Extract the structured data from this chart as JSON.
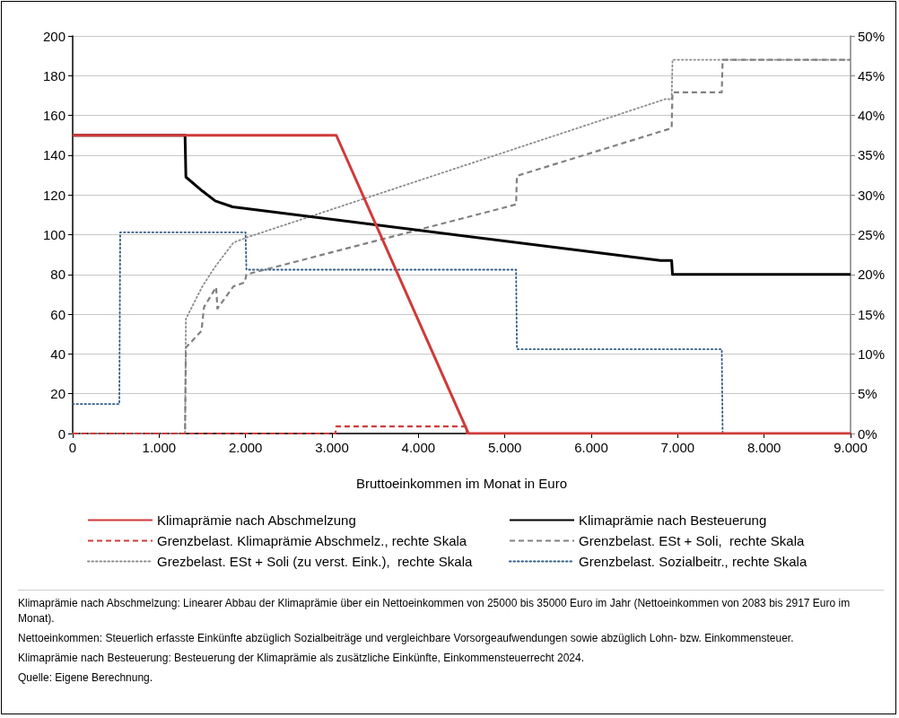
{
  "chart_data": {
    "type": "line",
    "xlabel": "Bruttoeinkommen im Monat in Euro",
    "xlim": [
      0,
      9000
    ],
    "xticks": [
      0,
      {
        "value": 1000,
        "label": "1.000"
      },
      {
        "value": 2000,
        "label": "2.000"
      },
      {
        "value": 3000,
        "label": "3.000"
      },
      {
        "value": 4000,
        "label": "4.000"
      },
      {
        "value": 5000,
        "label": "5.000"
      },
      {
        "value": 6000,
        "label": "6.000"
      },
      {
        "value": 7000,
        "label": "7.000"
      },
      {
        "value": 8000,
        "label": "8.000"
      },
      {
        "value": 9000,
        "label": "9.000"
      }
    ],
    "ylim": [
      0,
      200
    ],
    "yticks": [
      0,
      20,
      40,
      60,
      80,
      100,
      120,
      140,
      160,
      180,
      200
    ],
    "y2lim": [
      0,
      50
    ],
    "y2ticks": [
      {
        "value": 0,
        "label": "0%"
      },
      {
        "value": 5,
        "label": "5%"
      },
      {
        "value": 10,
        "label": "10%"
      },
      {
        "value": 15,
        "label": "15%"
      },
      {
        "value": 20,
        "label": "20%"
      },
      {
        "value": 25,
        "label": "25%"
      },
      {
        "value": 30,
        "label": "30%"
      },
      {
        "value": 35,
        "label": "35%"
      },
      {
        "value": 40,
        "label": "40%"
      },
      {
        "value": 45,
        "label": "45%"
      },
      {
        "value": 50,
        "label": "50%"
      }
    ],
    "grid": "y",
    "legend": "bottom",
    "marker": "none",
    "series": [
      {
        "name": "Klimaprämie nach Abschmelzung",
        "color": "#d03a3a",
        "line_style": "solid",
        "x": [
          0,
          3050,
          4580,
          9000
        ],
        "values": [
          150,
          150,
          0,
          0
        ]
      },
      {
        "name": "Klimaprämie nach Besteuerung",
        "color": "#000000",
        "line_style": "solid",
        "x": [
          0,
          1300,
          1310,
          1500,
          1650,
          1850,
          6800,
          6930,
          6940,
          9000
        ],
        "values": [
          150,
          150,
          129,
          122,
          117,
          114,
          87,
          87,
          80,
          80
        ]
      },
      {
        "name": "Grenzbelast. Klimaprämie Abschmelz., rechte Skala",
        "color": "#d03a3a",
        "line_style": "dashed",
        "axis": "y2",
        "x": [
          0,
          3040,
          3050,
          4550,
          4560,
          9000
        ],
        "values": [
          0,
          0,
          0.9,
          0.9,
          0,
          0
        ]
      },
      {
        "name": "Grenzbelast. ESt + Soli,  rechte Skala",
        "color": "#808080",
        "line_style": "dashed",
        "axis": "y2",
        "x": [
          0,
          1300,
          1310,
          1490,
          1520,
          1660,
          1675,
          1860,
          1990,
          2010,
          5130,
          5140,
          6930,
          6940,
          7510,
          7520,
          9000
        ],
        "values": [
          0,
          0,
          10.8,
          12.9,
          15.9,
          18.4,
          15.7,
          18.5,
          19,
          20,
          28.8,
          32.4,
          38.4,
          42.9,
          42.9,
          47,
          47
        ]
      },
      {
        "name": "Grezbelast. ESt + Soli (zu verst. Eink.),  rechte Skala",
        "color": "#8c8c8c",
        "line_style": "dotted",
        "axis": "y2",
        "x": [
          0,
          1300,
          1310,
          1500,
          1650,
          1860,
          2000,
          6870,
          6930,
          6940,
          9000
        ],
        "values": [
          0,
          0,
          14.4,
          18.5,
          21,
          24,
          24.6,
          42.1,
          42,
          47,
          47
        ]
      },
      {
        "name": "Grenzbelast. Sozialbeitr., rechte Skala",
        "color": "#2e5c8a",
        "line_style": "dotted",
        "axis": "y2",
        "x": [
          0,
          540,
          550,
          2000,
          2010,
          5130,
          5140,
          7510,
          7520,
          9000
        ],
        "values": [
          3.7,
          3.7,
          25.3,
          25.3,
          20.6,
          20.6,
          10.6,
          10.6,
          0,
          0
        ]
      }
    ],
    "annotations": [
      "Klimaprämie nach Abschmelzung: Linearer Abbau der Klimaprämie über ein Nettoeinkommen von 25000 bis 35000 Euro im Jahr (Nettoeinkommen von 2083 bis 2917 Euro im Monat).",
      "Nettoeinkommen: Steuerlich erfasste Einkünfte abzüglich Sozialbeiträge und vergleichbare Vorsorgeaufwendungen sowie abzüglich Lohn- bzw. Einkommensteuer.",
      "Klimaprämie nach Besteuerung: Besteuerung der Klimaprämie als zusätzliche Einkünfte, Einkommensteuerrecht 2024.",
      "Quelle: Eigene Berechnung."
    ]
  }
}
